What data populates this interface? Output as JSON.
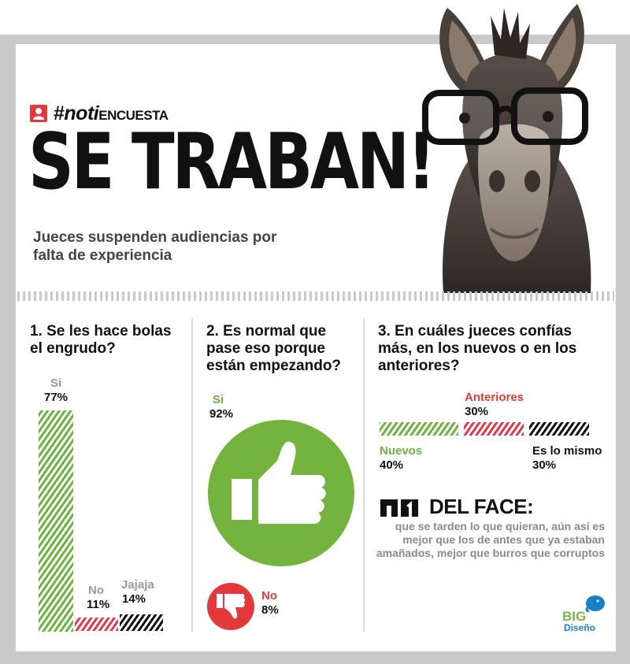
{
  "brand": {
    "tag_prefix": "#",
    "tag_noti": "noti",
    "tag_encuesta": "ENCUESTA",
    "icon": "user-icon"
  },
  "headline": "SE TRABAN!",
  "subhead": "Jueces suspenden audiencias por falta de experiencia",
  "q1": {
    "question": "1. Se les hace bolas el engrudo?",
    "answers": [
      {
        "label": "Si",
        "pct": "77%",
        "value": 77,
        "color": "#6db33f"
      },
      {
        "label": "No",
        "pct": "11%",
        "value": 11,
        "color": "#e0394b"
      },
      {
        "label": "Jajaja",
        "pct": "14%",
        "value": 14,
        "color": "#111111"
      }
    ]
  },
  "q2": {
    "question": "2. Es normal que pase eso porque están empezando?",
    "answers": [
      {
        "label": "Si",
        "pct": "92%",
        "value": 92,
        "color": "#6db33f",
        "icon": "thumbs-up-icon"
      },
      {
        "label": "No",
        "pct": "8%",
        "value": 8,
        "color": "#e23a3a",
        "icon": "thumbs-down-icon"
      }
    ]
  },
  "q3": {
    "question": "3. En cuáles jueces confías más, en los nuevos o en los anteriores?",
    "answers": [
      {
        "label": "Nuevos",
        "pct": "40%",
        "value": 40,
        "color": "#6db33f"
      },
      {
        "label": "Anteriores",
        "pct": "30%",
        "value": 30,
        "color": "#e0394b"
      },
      {
        "label": "Es lo mismo",
        "pct": "30%",
        "value": 30,
        "color": "#111111"
      }
    ]
  },
  "face": {
    "title": "DEL FACE:",
    "icon": "facebook-like-icon",
    "quote": "que se tarden lo que quieran, aún así es mejor que los de antes que ya estaban amañados, mejor que burros que corruptos"
  },
  "logo": {
    "big": "BIG",
    "diseno": "Diseño",
    "icon": "elephant-icon"
  },
  "colors": {
    "green": "#6db33f",
    "red": "#e0394b",
    "black": "#111111",
    "frame": "#c9c9c9"
  }
}
